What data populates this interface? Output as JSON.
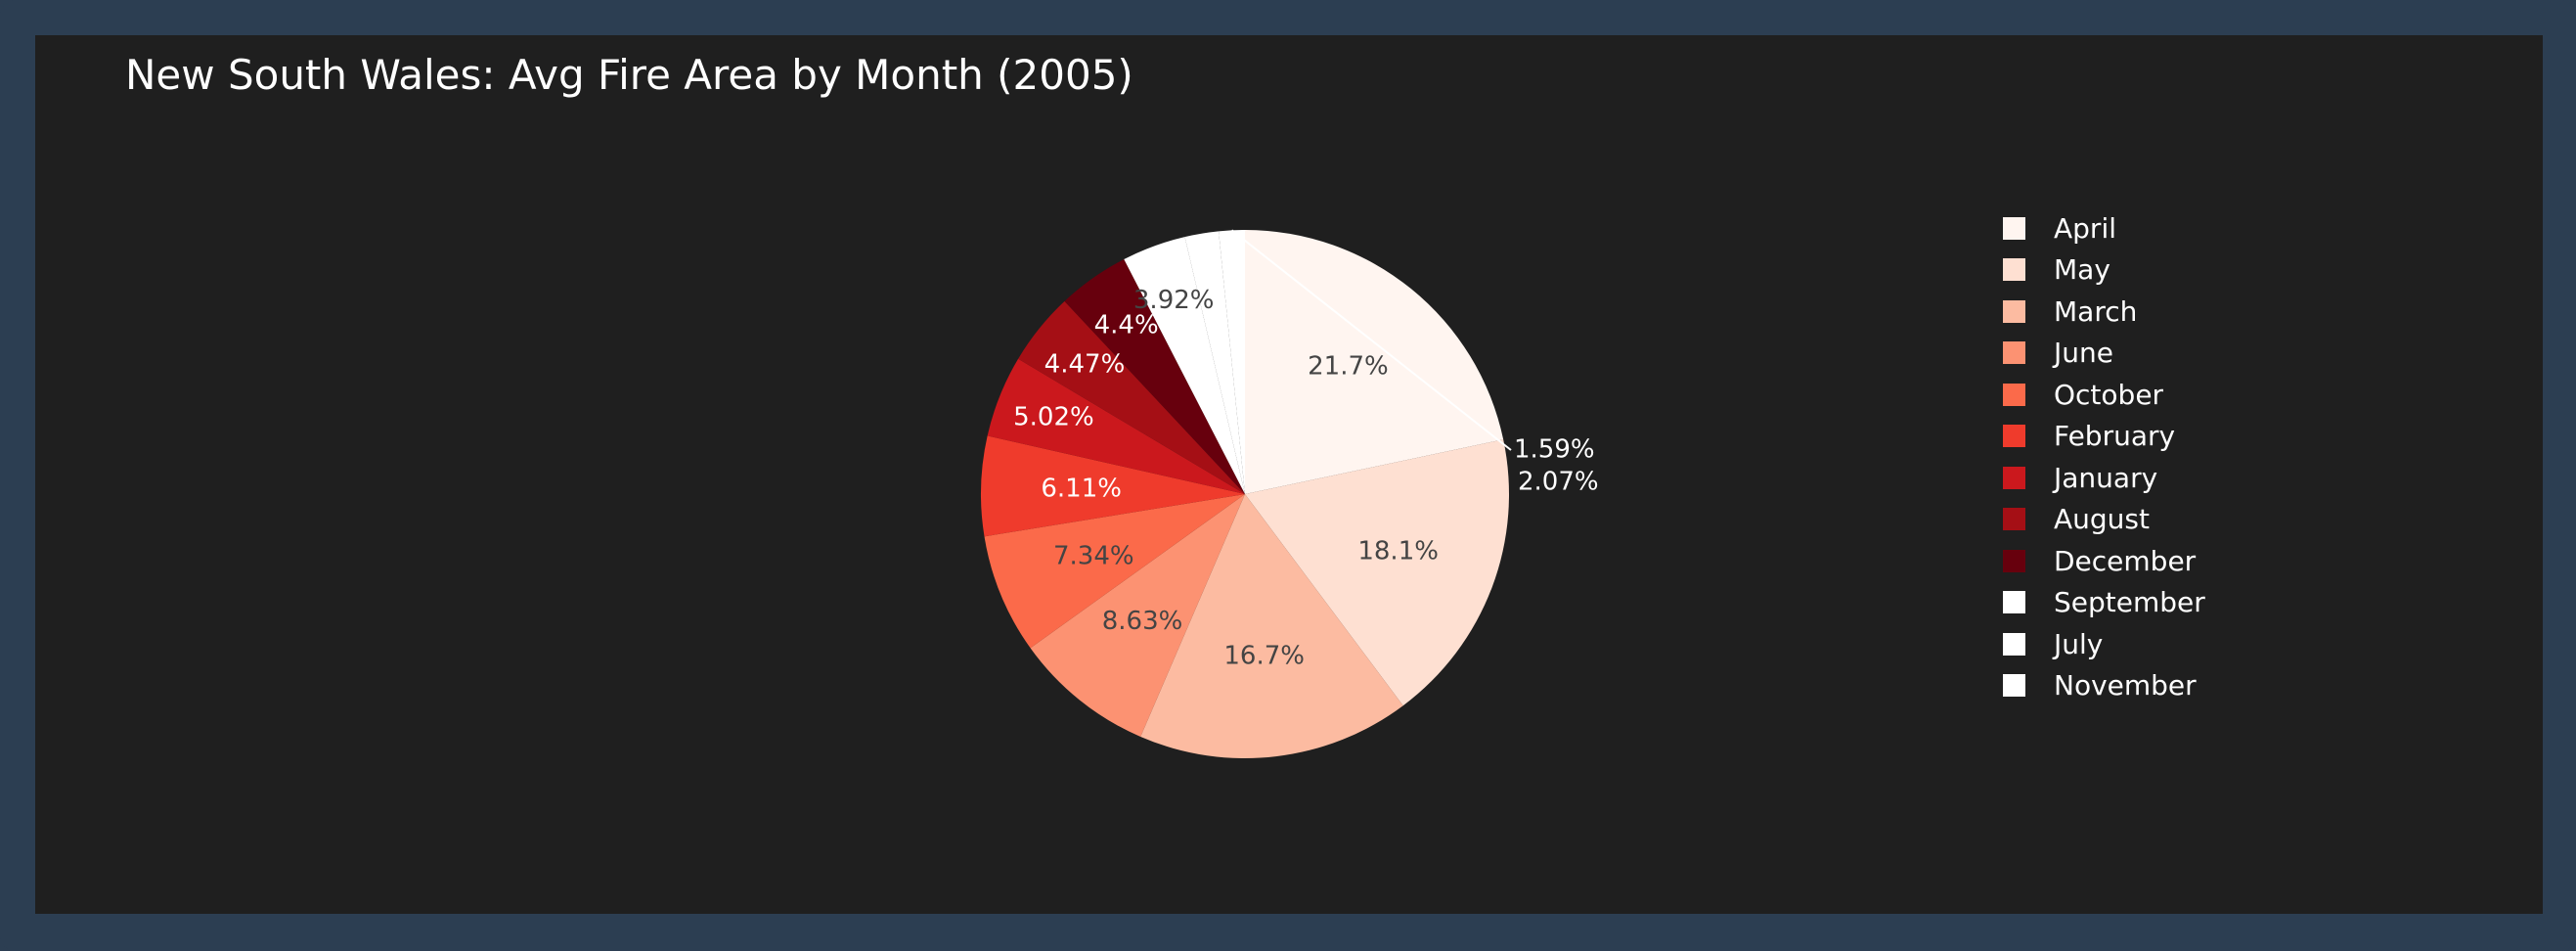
{
  "chart_data": {
    "type": "pie",
    "title": "New South Wales: Avg Fire Area by Month (2005)",
    "slices": [
      {
        "label": "April",
        "percent": 21.7,
        "display": "21.7%",
        "color": "#fff5f0"
      },
      {
        "label": "May",
        "percent": 18.1,
        "display": "18.1%",
        "color": "#fee0d2"
      },
      {
        "label": "March",
        "percent": 16.7,
        "display": "16.7%",
        "color": "#fcbba1"
      },
      {
        "label": "June",
        "percent": 8.63,
        "display": "8.63%",
        "color": "#fc9272"
      },
      {
        "label": "October",
        "percent": 7.34,
        "display": "7.34%",
        "color": "#fb6a4a"
      },
      {
        "label": "February",
        "percent": 6.11,
        "display": "6.11%",
        "color": "#ef3b2c"
      },
      {
        "label": "January",
        "percent": 5.02,
        "display": "5.02%",
        "color": "#cb181d"
      },
      {
        "label": "August",
        "percent": 4.47,
        "display": "4.47%",
        "color": "#a50f15"
      },
      {
        "label": "December",
        "percent": 4.4,
        "display": "4.4%",
        "color": "#67000d"
      },
      {
        "label": "September",
        "percent": 3.92,
        "display": "3.92%",
        "color": "#ffffff"
      },
      {
        "label": "July",
        "percent": 2.07,
        "display": "2.07%",
        "color": "#ffffff"
      },
      {
        "label": "November",
        "percent": 1.59,
        "display": "1.59%",
        "color": "#ffffff"
      }
    ],
    "legend_position": "right"
  }
}
